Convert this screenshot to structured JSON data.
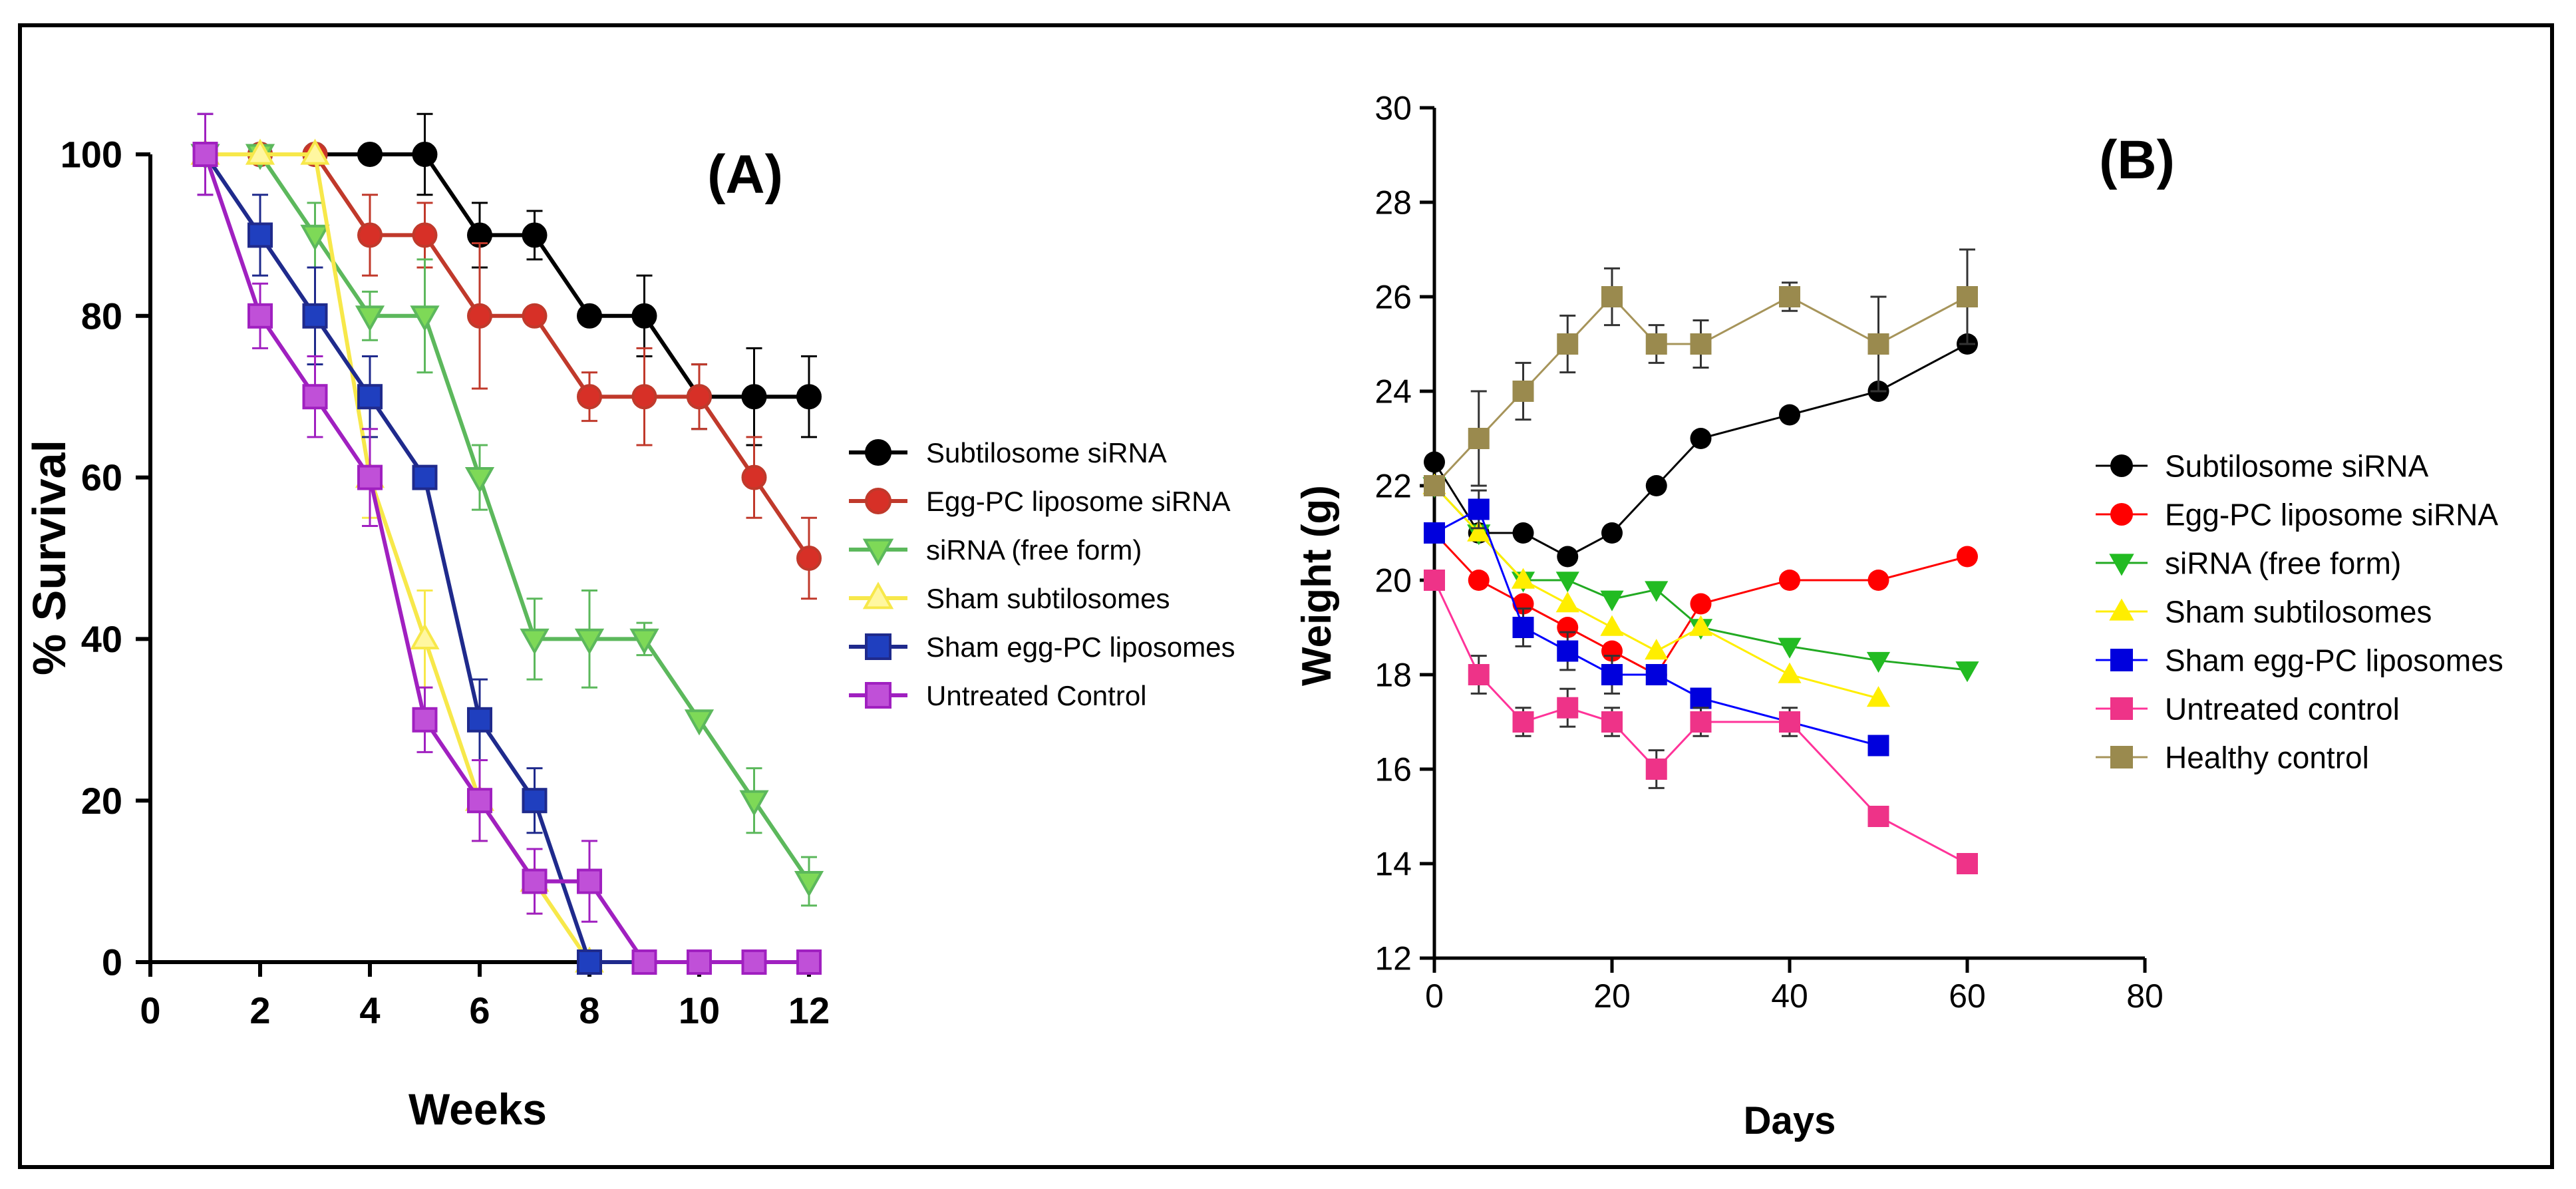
{
  "chart_data": [
    {
      "type": "line",
      "panel_label": "(A)",
      "title": "",
      "xlabel": "Weeks",
      "ylabel": "% Survival",
      "xlim": [
        0,
        12
      ],
      "ylim": [
        0,
        100
      ],
      "xticks": [
        "0",
        "2",
        "4",
        "6",
        "8",
        "10",
        "12"
      ],
      "yticks": [
        "0",
        "20",
        "40",
        "60",
        "80",
        "100"
      ],
      "legend_position": "right",
      "series": [
        {
          "name": "Subtilosome siRNA",
          "color": "#000000",
          "fill": "#000000",
          "marker": "circle",
          "x": [
            1,
            2,
            3,
            4,
            5,
            6,
            7,
            8,
            9,
            10,
            11,
            12
          ],
          "y": [
            100,
            100,
            100,
            100,
            100,
            90,
            90,
            80,
            80,
            70,
            70,
            70
          ],
          "err": [
            0,
            0,
            0,
            0,
            5,
            4,
            3,
            0,
            5,
            4,
            6,
            5
          ]
        },
        {
          "name": "Egg-PC liposome siRNA",
          "color": "#c0392b",
          "fill": "#d73027",
          "marker": "circle",
          "x": [
            1,
            2,
            3,
            4,
            5,
            6,
            7,
            8,
            9,
            10,
            11,
            12
          ],
          "y": [
            100,
            100,
            100,
            90,
            90,
            80,
            80,
            70,
            70,
            70,
            60,
            50
          ],
          "err": [
            0,
            0,
            0,
            5,
            4,
            9,
            0,
            3,
            6,
            4,
            5,
            5
          ]
        },
        {
          "name": "siRNA (free form)",
          "color": "#5cb85c",
          "fill": "#7ed957",
          "marker": "triangle-down",
          "x": [
            1,
            2,
            3,
            4,
            5,
            6,
            7,
            8,
            9,
            10,
            11,
            12
          ],
          "y": [
            100,
            100,
            90,
            80,
            80,
            60,
            40,
            40,
            40,
            30,
            20,
            10
          ],
          "err": [
            0,
            0,
            4,
            3,
            7,
            4,
            5,
            6,
            2,
            0,
            4,
            3
          ]
        },
        {
          "name": "Sham subtilosomes",
          "color": "#f7e84a",
          "fill": "#fff7a0",
          "marker": "triangle-up",
          "x": [
            1,
            2,
            3,
            4,
            5,
            6,
            7,
            8
          ],
          "y": [
            100,
            100,
            100,
            60,
            40,
            20,
            10,
            0
          ],
          "err": [
            0,
            0,
            0,
            5,
            6,
            5,
            4,
            0
          ]
        },
        {
          "name": "Sham egg-PC liposomes",
          "color": "#1f2a8c",
          "fill": "#1f3fbf",
          "marker": "square",
          "x": [
            1,
            2,
            3,
            4,
            5,
            6,
            7,
            8,
            9,
            10,
            11,
            12
          ],
          "y": [
            100,
            90,
            80,
            70,
            60,
            30,
            20,
            0,
            0,
            0,
            0,
            0
          ],
          "err": [
            5,
            5,
            6,
            5,
            0,
            5,
            4,
            0,
            0,
            0,
            0,
            0
          ]
        },
        {
          "name": "Untreated Control",
          "color": "#a020c0",
          "fill": "#c050d8",
          "marker": "square",
          "x": [
            1,
            2,
            3,
            4,
            5,
            6,
            7,
            8,
            9,
            10,
            11,
            12
          ],
          "y": [
            100,
            80,
            70,
            60,
            30,
            20,
            10,
            10,
            0,
            0,
            0,
            0
          ],
          "err": [
            5,
            4,
            5,
            6,
            4,
            5,
            4,
            5,
            0,
            0,
            0,
            0
          ]
        }
      ]
    },
    {
      "type": "line",
      "panel_label": "(B)",
      "title": "",
      "xlabel": "Days",
      "ylabel": "Weight (g)",
      "xlim": [
        0,
        80
      ],
      "ylim": [
        12,
        30
      ],
      "xticks": [
        "0",
        "20",
        "40",
        "60",
        "80"
      ],
      "yticks": [
        "12",
        "14",
        "16",
        "18",
        "20",
        "22",
        "24",
        "26",
        "28",
        "30"
      ],
      "legend_position": "right",
      "series": [
        {
          "name": "Subtilosome siRNA",
          "color": "#000000",
          "fill": "#000000",
          "marker": "circle",
          "x": [
            0,
            5,
            10,
            15,
            20,
            25,
            30,
            40,
            50,
            60
          ],
          "y": [
            22.5,
            21,
            21,
            20.5,
            21,
            22,
            23,
            23.5,
            24,
            25
          ],
          "err": [
            0,
            0,
            0,
            0,
            0,
            0,
            0,
            0,
            0,
            0
          ]
        },
        {
          "name": "Egg-PC liposome siRNA",
          "color": "#ff0000",
          "fill": "#ff0000",
          "marker": "circle",
          "x": [
            0,
            5,
            10,
            15,
            20,
            25,
            30,
            40,
            50,
            60
          ],
          "y": [
            21,
            20,
            19.5,
            19,
            18.5,
            18,
            19.5,
            20,
            20,
            20.5
          ],
          "err": [
            0,
            0,
            0,
            0,
            0,
            0,
            0,
            0,
            0,
            0
          ]
        },
        {
          "name": "siRNA (free form)",
          "color": "#22aa22",
          "fill": "#22bb22",
          "marker": "triangle-down",
          "x": [
            0,
            5,
            10,
            15,
            20,
            25,
            30,
            40,
            50,
            60
          ],
          "y": [
            22,
            21,
            20,
            20,
            19.6,
            19.8,
            19,
            18.6,
            18.3,
            18.1
          ],
          "err": [
            0,
            0,
            0,
            0,
            0,
            0,
            0,
            0,
            0,
            0
          ]
        },
        {
          "name": "Sham subtilosomes",
          "color": "#ffee00",
          "fill": "#ffee00",
          "marker": "triangle-up",
          "x": [
            0,
            5,
            10,
            15,
            20,
            25,
            30,
            40,
            50
          ],
          "y": [
            22,
            21,
            20,
            19.5,
            19,
            18.5,
            19,
            18,
            17.5
          ],
          "err": [
            0,
            0,
            0,
            0,
            0,
            0,
            0,
            0,
            0
          ]
        },
        {
          "name": "Sham egg-PC liposomes",
          "color": "#0000ff",
          "fill": "#0000dd",
          "marker": "square",
          "x": [
            0,
            5,
            10,
            15,
            20,
            25,
            30,
            40,
            50
          ],
          "y": [
            21,
            21.5,
            19,
            18.5,
            18,
            18,
            17.5,
            17,
            16.5
          ],
          "err": [
            0,
            0.4,
            0.4,
            0.4,
            0.4,
            0,
            0,
            0,
            0
          ]
        },
        {
          "name": "Untreated control",
          "color": "#ff3399",
          "fill": "#ee3388",
          "marker": "square",
          "x": [
            0,
            5,
            10,
            15,
            20,
            25,
            30,
            40,
            50,
            60
          ],
          "y": [
            20,
            18,
            17,
            17.3,
            17,
            16,
            17,
            17,
            15,
            14
          ],
          "err": [
            0,
            0.4,
            0.3,
            0.4,
            0.3,
            0.4,
            0.3,
            0.3,
            0,
            0
          ]
        },
        {
          "name": "Healthy control",
          "color": "#a6945a",
          "fill": "#9a8a4e",
          "marker": "square",
          "x": [
            0,
            5,
            10,
            15,
            20,
            25,
            30,
            40,
            50,
            60
          ],
          "y": [
            22,
            23,
            24,
            25,
            26,
            25,
            25,
            26,
            25,
            26
          ],
          "err": [
            0,
            1,
            0.6,
            0.6,
            0.6,
            0.4,
            0.5,
            0.3,
            1,
            1
          ]
        }
      ]
    }
  ]
}
